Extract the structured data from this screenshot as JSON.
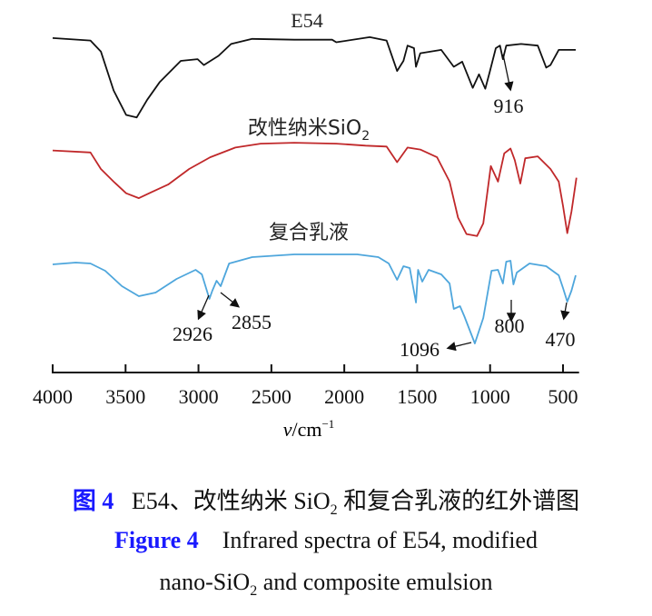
{
  "chart_data": {
    "type": "line",
    "title": "",
    "xlabel": "v/cm⁻¹",
    "xlim": [
      4000,
      390
    ],
    "xticks": [
      4000,
      3500,
      3000,
      2500,
      2000,
      1500,
      1000,
      500
    ],
    "ylabel": "",
    "grid": false,
    "legend": "none",
    "series": [
      {
        "name": "E54",
        "label_main": "E54",
        "color": "#111111",
        "x": [
          4000,
          3741,
          3669,
          3582,
          3496,
          3424,
          3352,
          3265,
          3121,
          3006,
          2963,
          2862,
          2776,
          2632,
          2343,
          2084,
          2055,
          1825,
          1710,
          1638,
          1594,
          1566,
          1522,
          1508,
          1479,
          1335,
          1249,
          1191,
          1119,
          1076,
          1033,
          1004,
          961,
          932,
          912,
          889,
          788,
          673,
          615,
          586,
          529,
          413
        ],
        "y": [
          98,
          95,
          82,
          36,
          7,
          4,
          25,
          46,
          71,
          73,
          66,
          77,
          91,
          97,
          96,
          96,
          93,
          99,
          95,
          59,
          71,
          89,
          86,
          64,
          80,
          84,
          64,
          70,
          39,
          55,
          38,
          57,
          86,
          89,
          73,
          89,
          91,
          89,
          63,
          66,
          84,
          84
        ],
        "annotations": [
          {
            "text": "916",
            "x": 912
          }
        ]
      },
      {
        "name": "改性纳米SiO2",
        "label_main": "改性纳米SiO",
        "label_sub": "2",
        "color": "#c0282a",
        "x": [
          4000,
          3741,
          3669,
          3582,
          3496,
          3409,
          3323,
          3208,
          3064,
          2920,
          2747,
          2574,
          2343,
          2055,
          1854,
          1710,
          1638,
          1566,
          1479,
          1364,
          1278,
          1220,
          1162,
          1090,
          1047,
          995,
          946,
          903,
          860,
          831,
          793,
          759,
          673,
          586,
          529,
          500,
          471,
          442,
          408
        ],
        "y": [
          91,
          89,
          72,
          59,
          47,
          42,
          48,
          56,
          72,
          84,
          94,
          98,
          99,
          98,
          96,
          95,
          79,
          94,
          92,
          84,
          59,
          22,
          5,
          3,
          16,
          75,
          59,
          88,
          93,
          81,
          57,
          83,
          85,
          72,
          59,
          34,
          6,
          28,
          63
        ],
        "annotations": []
      },
      {
        "name": "复合乳液",
        "label_main": "复合乳液",
        "color": "#4ea6dc",
        "x": [
          4000,
          3842,
          3741,
          3640,
          3525,
          3409,
          3294,
          3150,
          3020,
          2977,
          2925,
          2905,
          2876,
          2848,
          2790,
          2632,
          2343,
          1911,
          1767,
          1695,
          1638,
          1594,
          1551,
          1508,
          1494,
          1465,
          1422,
          1335,
          1278,
          1249,
          1206,
          1177,
          1105,
          1047,
          990,
          946,
          912,
          889,
          860,
          840,
          817,
          730,
          615,
          529,
          500,
          471,
          442,
          413
        ],
        "y": [
          89,
          91,
          90,
          82,
          65,
          54,
          58,
          73,
          83,
          78,
          51,
          60,
          71,
          65,
          90,
          97,
          100,
          100,
          97,
          90,
          72,
          87,
          85,
          47,
          83,
          70,
          83,
          78,
          68,
          40,
          43,
          32,
          2,
          30,
          82,
          83,
          68,
          92,
          93,
          67,
          80,
          90,
          87,
          77,
          63,
          48,
          60,
          77
        ],
        "annotations": [
          {
            "text": "2926",
            "x": 2926
          },
          {
            "text": "2855",
            "x": 2855
          },
          {
            "text": "1096",
            "x": 1096
          },
          {
            "text": "800",
            "x": 800
          },
          {
            "text": "470",
            "x": 470
          }
        ]
      }
    ]
  },
  "caption": {
    "cn_label": "图 4",
    "cn_text": "E54、改性纳米 SiO",
    "cn_sub": "2",
    "cn_text2": "和复合乳液的红外谱图",
    "en_label": "Figure 4",
    "en_line1": "Infrared spectra of E54, modified",
    "en_line2a": "nano-SiO",
    "en_sub": "2",
    "en_line2b": " and composite emulsion"
  }
}
